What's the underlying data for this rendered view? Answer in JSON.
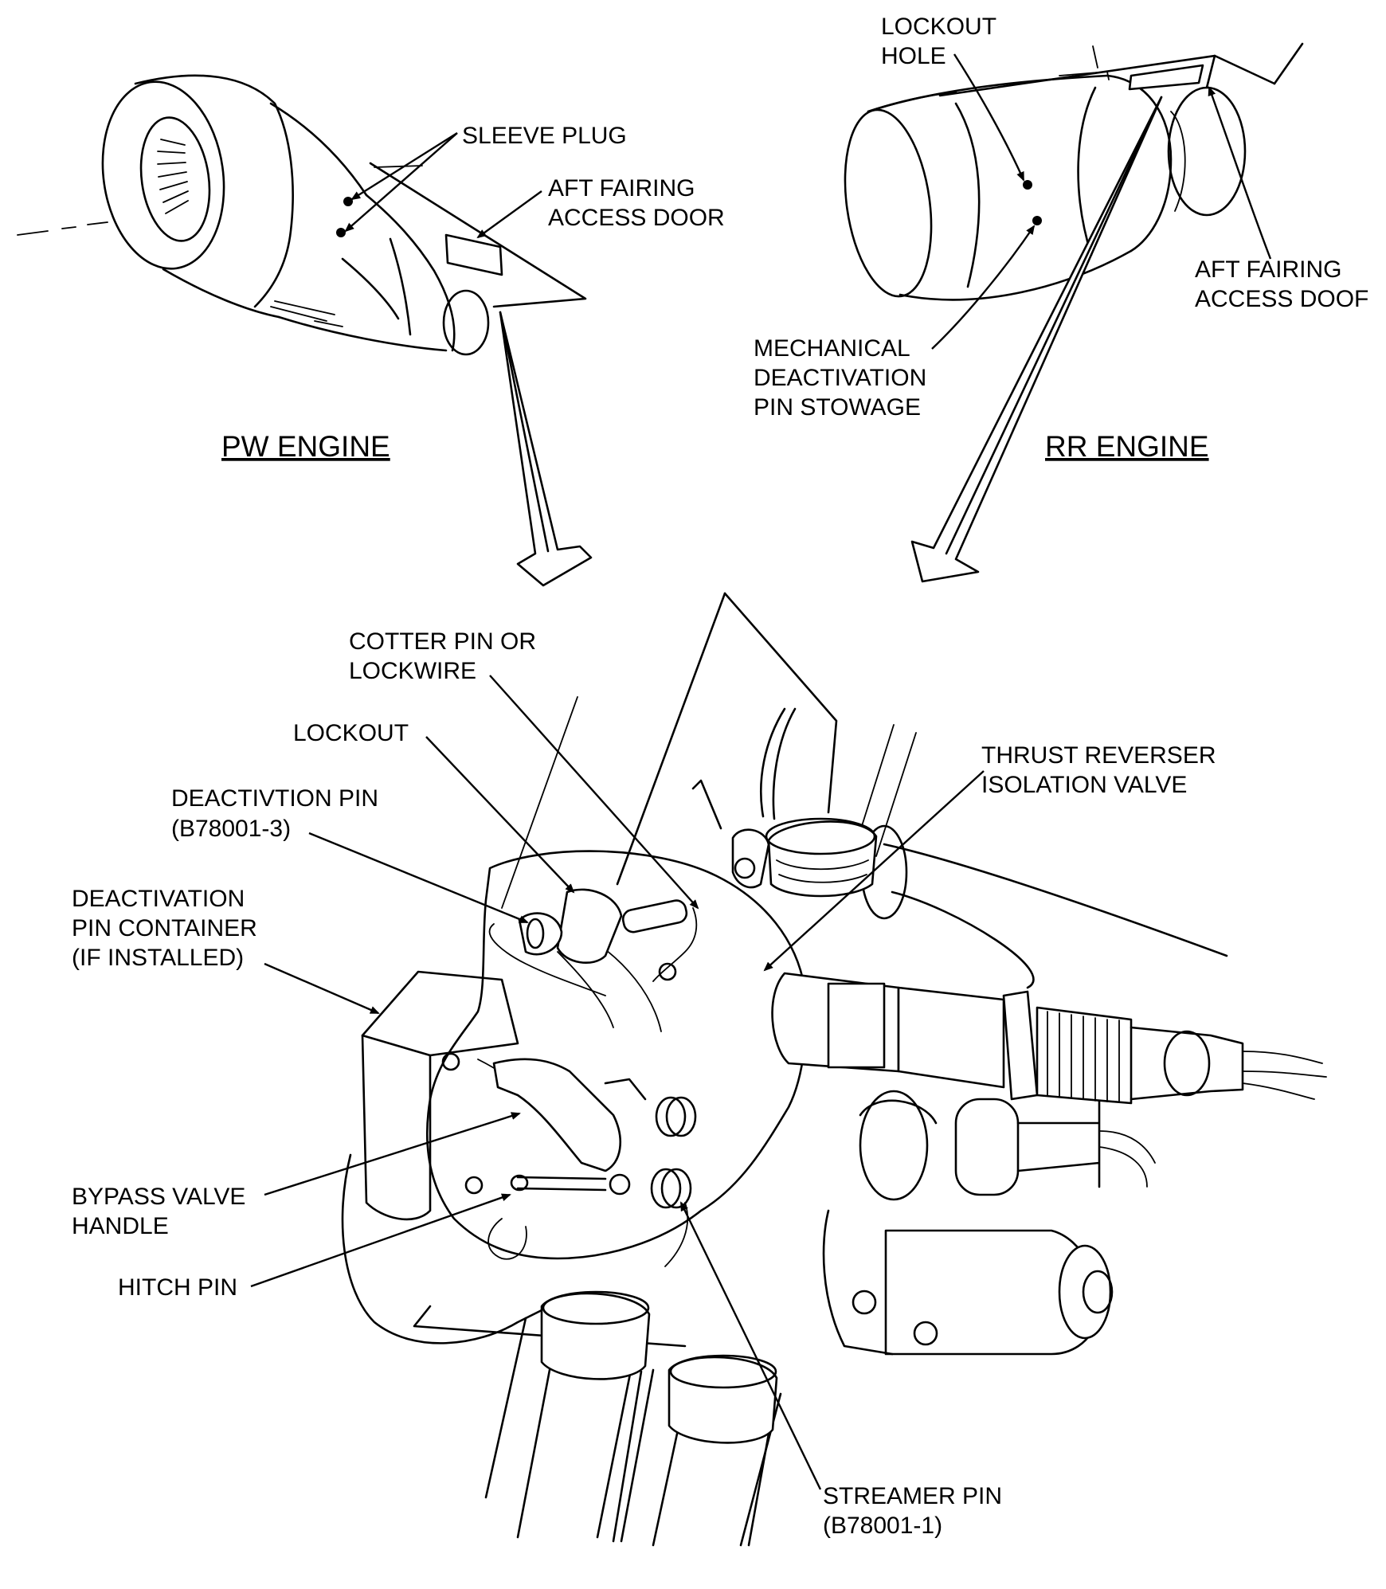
{
  "views": {
    "pw": {
      "title": "PW ENGINE"
    },
    "rr": {
      "title": "RR ENGINE"
    }
  },
  "labels": {
    "sleeve_plug": "SLEEVE PLUG",
    "pw_aft_fairing_1": "AFT FAIRING",
    "pw_aft_fairing_2": "ACCESS DOOR",
    "lockout_hole_1": "LOCKOUT",
    "lockout_hole_2": "HOLE",
    "rr_aft_fairing_1": "AFT FAIRING",
    "rr_aft_fairing_2": "ACCESS DOOF",
    "mech_deact_1": "MECHANICAL",
    "mech_deact_2": "DEACTIVATION",
    "mech_deact_3": "PIN STOWAGE",
    "cotter_1": "COTTER PIN OR",
    "cotter_2": "LOCKWIRE",
    "lockout": "LOCKOUT",
    "deact_pin_1": "DEACTIVTION PIN",
    "deact_pin_2": "(B78001-3)",
    "container_1": "DEACTIVATION",
    "container_2": "PIN CONTAINER",
    "container_3": "(IF INSTALLED)",
    "thrust_1": "THRUST REVERSER",
    "thrust_2": "ISOLATION VALVE",
    "bypass_1": "BYPASS VALVE",
    "bypass_2": "HANDLE",
    "hitch": "HITCH PIN",
    "streamer_1": "STREAMER PIN",
    "streamer_2": "(B78001-1)"
  },
  "icons": {
    "arrowhead": "arrowhead-icon",
    "pointer_arrow": "down-arrow-icon"
  },
  "colors": {
    "ink": "#000000",
    "paper": "#ffffff"
  }
}
